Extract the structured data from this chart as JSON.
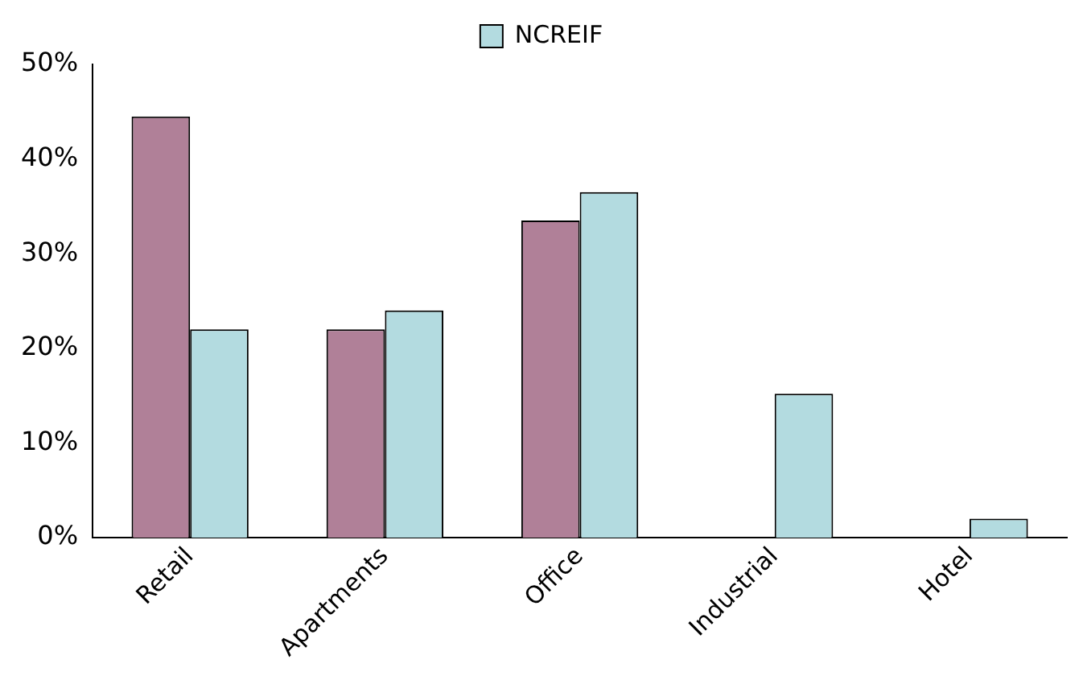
{
  "chart_data": {
    "type": "bar",
    "categories": [
      "Retail",
      "Apartments",
      "Office",
      "Industrial",
      "Hotel"
    ],
    "series": [
      {
        "color": "#b08098",
        "values": [
          44.5,
          22,
          33.5,
          0,
          0
        ]
      },
      {
        "name": "NCREIF",
        "color": "#b3dbe0",
        "values": [
          22,
          24,
          36.5,
          15.2,
          2
        ]
      }
    ],
    "ylim": [
      0,
      50
    ],
    "yticks": [
      {
        "value": 0,
        "label": "0%"
      },
      {
        "value": 10,
        "label": "10%"
      },
      {
        "value": 20,
        "label": "20%"
      },
      {
        "value": 30,
        "label": "30%"
      },
      {
        "value": 40,
        "label": "40%"
      },
      {
        "value": 50,
        "label": "50%"
      }
    ],
    "grid": false,
    "legend": "top"
  }
}
